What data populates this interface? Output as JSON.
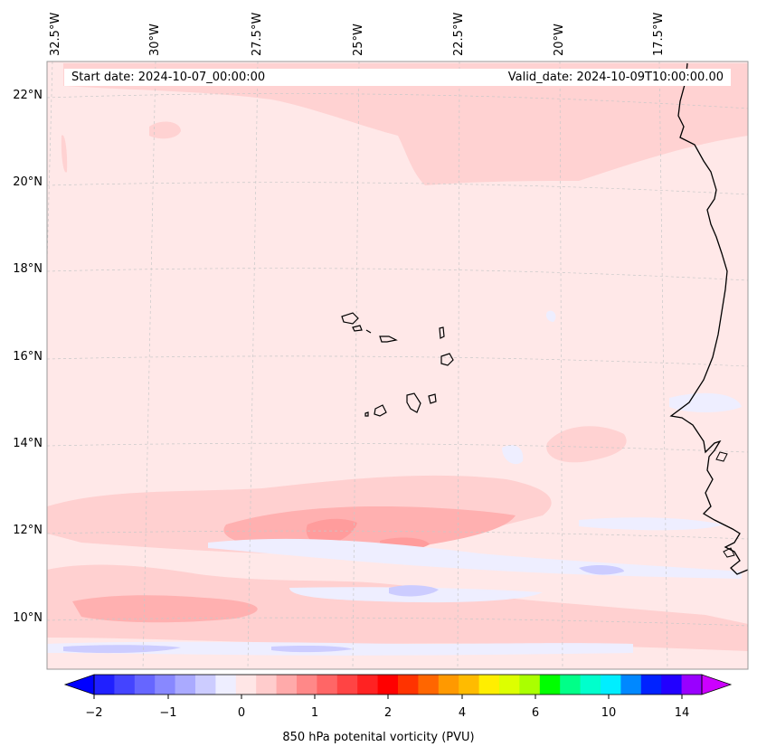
{
  "header": {
    "start_label": "Start date: 2024-10-07_00:00:00",
    "valid_label": "Valid_date: 2024-10-09T10:00:00.00"
  },
  "axes": {
    "lon_labels": [
      "32.5°W",
      "30°W",
      "27.5°W",
      "25°W",
      "22.5°W",
      "20°W",
      "17.5°W"
    ],
    "lat_labels": [
      "22°N",
      "20°N",
      "18°N",
      "16°N",
      "14°N",
      "12°N",
      "10°N"
    ]
  },
  "colorbar": {
    "title": "850 hPa potenital vorticity (PVU)",
    "ticks": [
      "−2",
      "−1",
      "0",
      "1",
      "2",
      "4",
      "6",
      "10",
      "14"
    ],
    "colors": [
      "#0000ff",
      "#2020ff",
      "#4444ff",
      "#6666ff",
      "#8888ff",
      "#aaaaff",
      "#ccccff",
      "#eeeeff",
      "#ffe6e6",
      "#ffcccc",
      "#ffaaaa",
      "#ff8888",
      "#ff6666",
      "#ff4444",
      "#ff2222",
      "#ff0000",
      "#ff3300",
      "#ff6600",
      "#ff9900",
      "#ffbb00",
      "#ffee00",
      "#ddff00",
      "#aaff00",
      "#00ff00",
      "#00ff88",
      "#00ffcc",
      "#00eeff",
      "#0088ff",
      "#0022ff",
      "#2200ff",
      "#9900ff",
      "#cc00ff"
    ]
  },
  "colors": {
    "background_pv": "#ffe8e8",
    "light_pos": "#ffd0d0",
    "mid_pos": "#ffb0b0",
    "strong_pos": "#ff9c9c",
    "light_neg": "#eeeeff",
    "mid_neg": "#ccccff"
  },
  "chart_data": {
    "type": "contour-map",
    "variable": "850 hPa potential vorticity",
    "units": "PVU",
    "lon_range": [
      -33,
      -14.5
    ],
    "lat_range": [
      9,
      22.8
    ],
    "color_levels": [
      -2,
      -1.5,
      -1,
      -0.5,
      0,
      0.5,
      1,
      1.5,
      2,
      4,
      6,
      10,
      14
    ],
    "dominant_value_range": [
      -0.5,
      1.5
    ]
  }
}
